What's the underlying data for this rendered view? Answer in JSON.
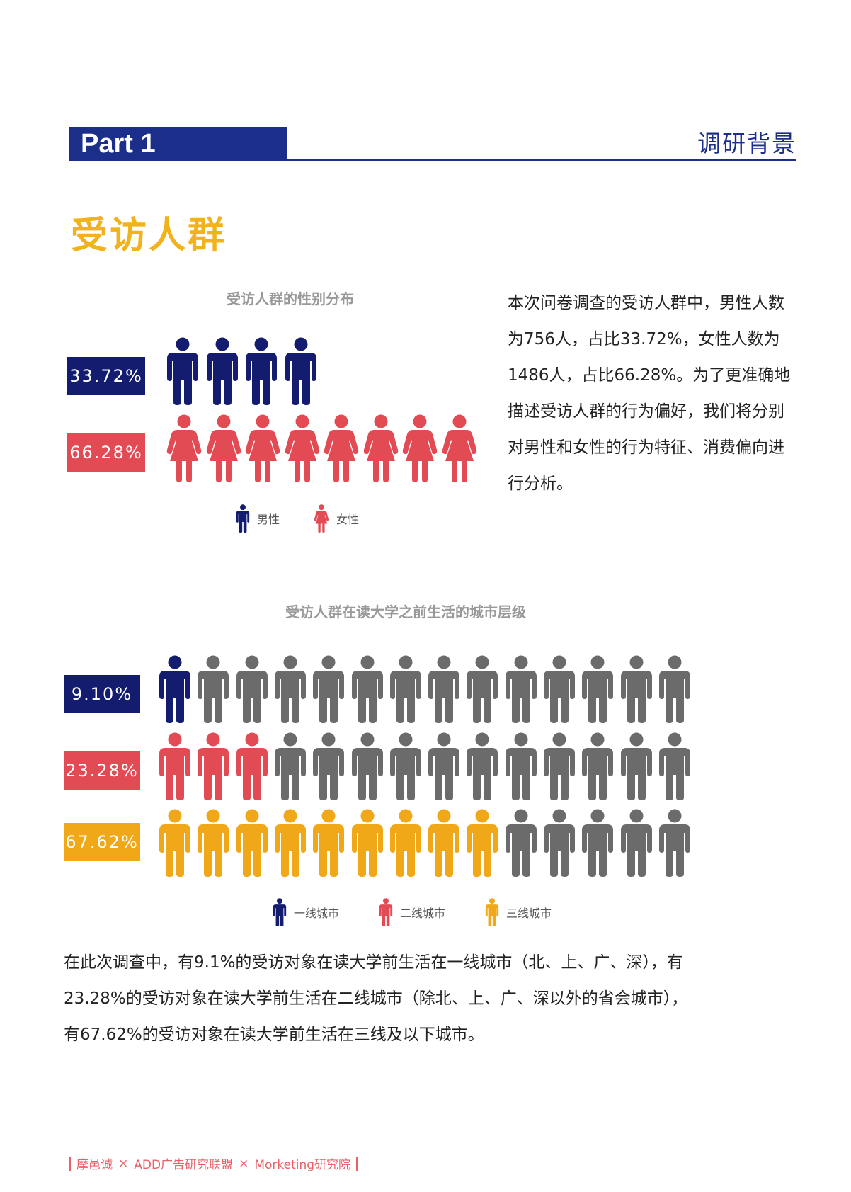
{
  "header": {
    "part_label": "Part 1",
    "section_name": "调研背景"
  },
  "page_title": "受访人群",
  "colors": {
    "navy": "#131c6e",
    "red": "#e34b54",
    "yellow": "#f0a818",
    "gray": "#6b6b6b",
    "header": "#1b2f8a",
    "title": "#f2b21a"
  },
  "gender_text": "本次问卷调查的受访人群中，男性人数为756人，占比33.72%，女性人数为1486人，占比66.28%。为了更准确地描述受访人群的行为偏好，我们将分别对男性和女性的行为特征、消费偏向进行分析。",
  "city_text": "在此次调查中，有9.1%的受访对象在读大学前生活在一线城市（北、上、广、深），有23.28%的受访对象在读大学前生活在二线城市（除北、上、广、深以外的省会城市），有67.62%的受访对象在读大学前生活在三线及以下城市。",
  "chart_data": [
    {
      "type": "pictograph",
      "title": "受访人群的性别分布",
      "series": [
        {
          "name": "男性",
          "label": "33.72%",
          "value": 33.72,
          "icons": 4,
          "icon": "man-icon",
          "color": "#131c6e"
        },
        {
          "name": "女性",
          "label": "66.28%",
          "value": 66.28,
          "icons": 8,
          "icon": "woman-icon",
          "color": "#e34b54"
        }
      ],
      "legend": [
        "男性",
        "女性"
      ],
      "legend_placement": "bottom"
    },
    {
      "type": "pictograph",
      "title": "受访人群在读大学之前生活的城市层级",
      "total_icons": 14,
      "series": [
        {
          "name": "一线城市",
          "label": "9.10%",
          "value": 9.1,
          "icons": 1,
          "color": "#131c6e"
        },
        {
          "name": "二线城市",
          "label": "23.28%",
          "value": 23.28,
          "icons": 3,
          "color": "#e34b54"
        },
        {
          "name": "三线城市",
          "label": "67.62%",
          "value": 67.62,
          "icons": 9,
          "color": "#f0a818"
        }
      ],
      "remainder_color": "#6b6b6b",
      "legend": [
        "一线城市",
        "二线城市",
        "三线城市"
      ],
      "legend_placement": "bottom"
    }
  ],
  "footer": {
    "parts": [
      "摩邑诚",
      "×",
      "ADD广告研究联盟",
      "×",
      "Morketing研究院"
    ]
  }
}
